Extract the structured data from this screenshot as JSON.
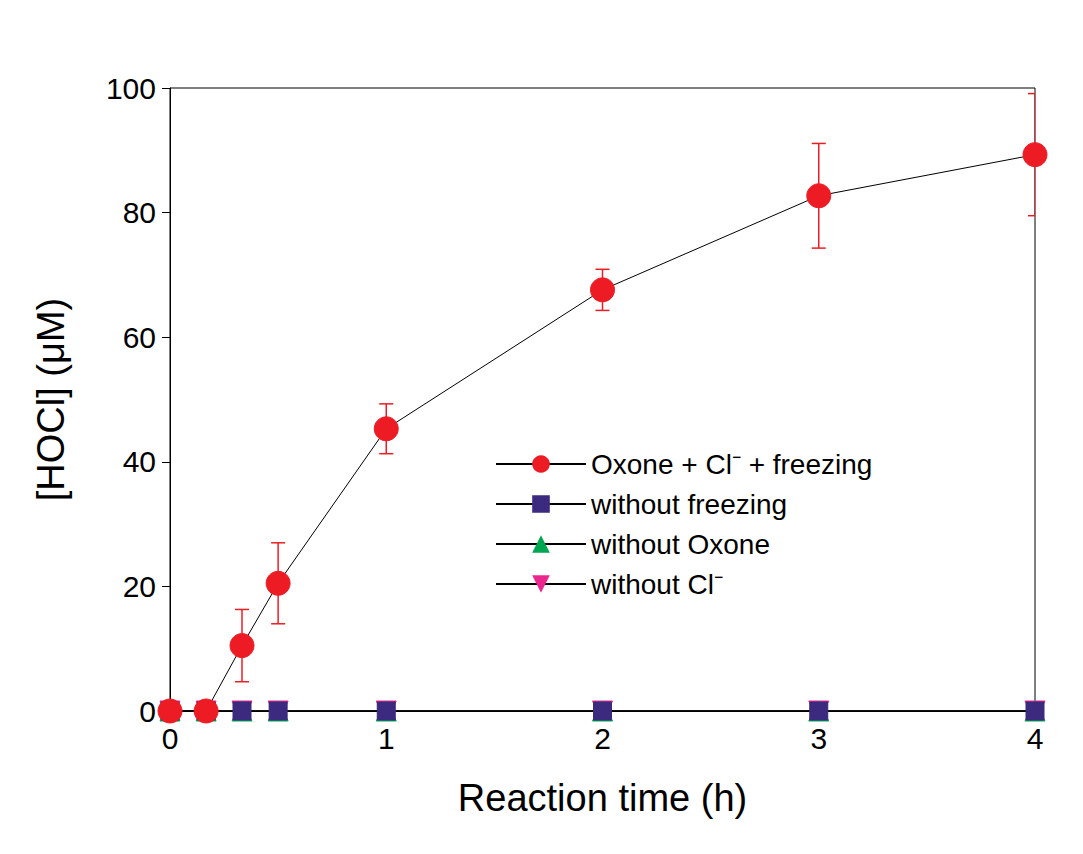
{
  "chart_data": {
    "type": "line",
    "xlabel": "Reaction time (h)",
    "ylabel": "[HOCl] (μM)",
    "x": [
      0,
      0.167,
      0.333,
      0.5,
      1,
      2,
      3,
      4
    ],
    "xlim": [
      0,
      4
    ],
    "xticks": [
      0,
      1,
      2,
      3,
      4
    ],
    "ylim": [
      0,
      100
    ],
    "yticks": [
      0,
      20,
      40,
      60,
      80,
      100
    ],
    "grid": false,
    "legend": "lower right",
    "series": [
      {
        "name": "Oxone + Cl⁻ + freezing",
        "color": "#ed1c24",
        "marker": "circle",
        "values": [
          0,
          0,
          10.5,
          20.5,
          45.3,
          67.6,
          82.7,
          89.3
        ],
        "errors": [
          0,
          0,
          5.8,
          6.5,
          4.0,
          3.3,
          8.4,
          9.8
        ]
      },
      {
        "name": "without freezing",
        "color": "#3b2a7e",
        "marker": "square",
        "values": [
          0,
          0,
          0,
          0,
          0,
          0,
          0,
          0
        ]
      },
      {
        "name": "without Oxone",
        "color": "#00a651",
        "marker": "triangle",
        "values": [
          0,
          0,
          0,
          0,
          0,
          0,
          0,
          0
        ]
      },
      {
        "name": "without Cl⁻",
        "color": "#ec268f",
        "marker": "triangle_down",
        "values": [
          0,
          0,
          0,
          0,
          0,
          0,
          0,
          0
        ]
      }
    ]
  }
}
